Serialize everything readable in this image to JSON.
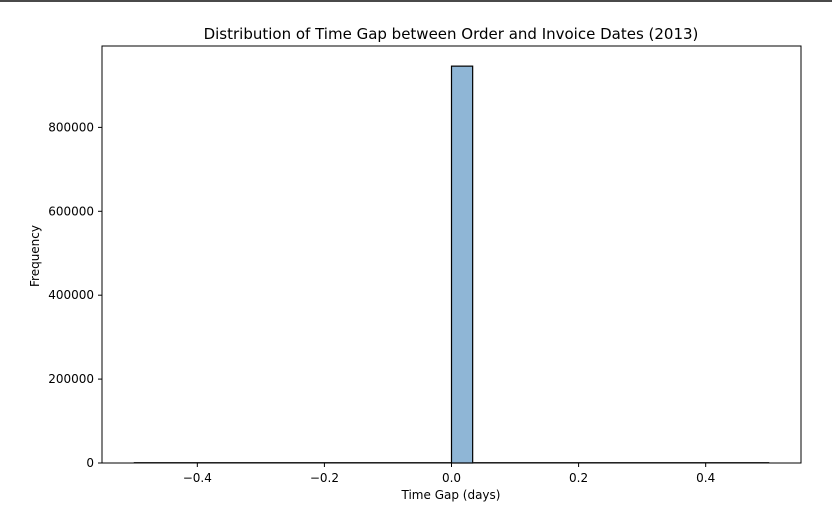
{
  "chart_data": {
    "type": "bar",
    "title": "Distribution of Time Gap between Order and Invoice Dates (2013)",
    "xlabel": "Time Gap (days)",
    "ylabel": "Frequency",
    "xlim": [
      -0.55,
      0.55
    ],
    "ylim": [
      0,
      994000
    ],
    "x_ticks": [
      -0.4,
      -0.2,
      0.0,
      0.2,
      0.4
    ],
    "x_tick_labels": [
      "−0.4",
      "−0.2",
      "0.0",
      "0.2",
      "0.4"
    ],
    "y_ticks": [
      0,
      200000,
      400000,
      600000,
      800000
    ],
    "y_tick_labels": [
      "0",
      "200000",
      "400000",
      "600000",
      "800000"
    ],
    "bins": [
      {
        "x0": -0.5,
        "x1": 0.0,
        "value": 0
      },
      {
        "x0": 0.0,
        "x1": 0.0333,
        "value": 946000
      },
      {
        "x0": 0.0333,
        "x1": 0.5,
        "value": 0
      }
    ],
    "grid": false,
    "bar_color": "#8fb6d6",
    "edge_color": "#000000"
  }
}
